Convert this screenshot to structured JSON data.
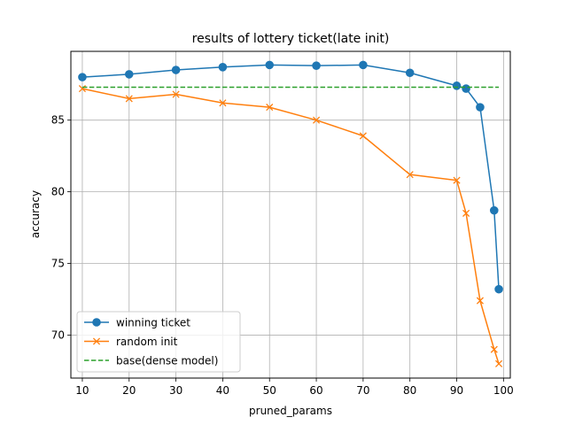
{
  "chart_data": {
    "type": "line",
    "title": "results of lottery ticket(late init)",
    "xlabel": "pruned_params",
    "ylabel": "accuracy",
    "xlim": [
      7.55,
      101.45
    ],
    "ylim": [
      67.0,
      89.8
    ],
    "xticks": [
      10,
      20,
      30,
      40,
      50,
      60,
      70,
      80,
      90,
      100
    ],
    "yticks": [
      70,
      75,
      80,
      85
    ],
    "grid": true,
    "legend_position": "lower-left",
    "series": [
      {
        "name": "winning ticket",
        "color": "#1f77b4",
        "marker": "circle",
        "linestyle": "solid",
        "x": [
          10,
          20,
          30,
          40,
          50,
          60,
          70,
          80,
          90,
          92,
          95,
          98,
          99
        ],
        "y": [
          88.0,
          88.2,
          88.5,
          88.7,
          88.85,
          88.8,
          88.85,
          88.3,
          87.4,
          87.2,
          85.9,
          78.7,
          73.2
        ]
      },
      {
        "name": "random init",
        "color": "#ff7f0e",
        "marker": "x",
        "linestyle": "solid",
        "x": [
          10,
          20,
          30,
          40,
          50,
          60,
          70,
          80,
          90,
          92,
          95,
          98,
          99
        ],
        "y": [
          87.2,
          86.5,
          86.8,
          86.2,
          85.9,
          85.0,
          83.9,
          81.2,
          80.8,
          78.5,
          72.4,
          69.0,
          68.0
        ]
      },
      {
        "name": "base(dense model)",
        "color": "#2ca02c",
        "marker": "none",
        "linestyle": "dashed",
        "x": [
          10,
          99
        ],
        "y": [
          87.3,
          87.3
        ]
      }
    ]
  }
}
